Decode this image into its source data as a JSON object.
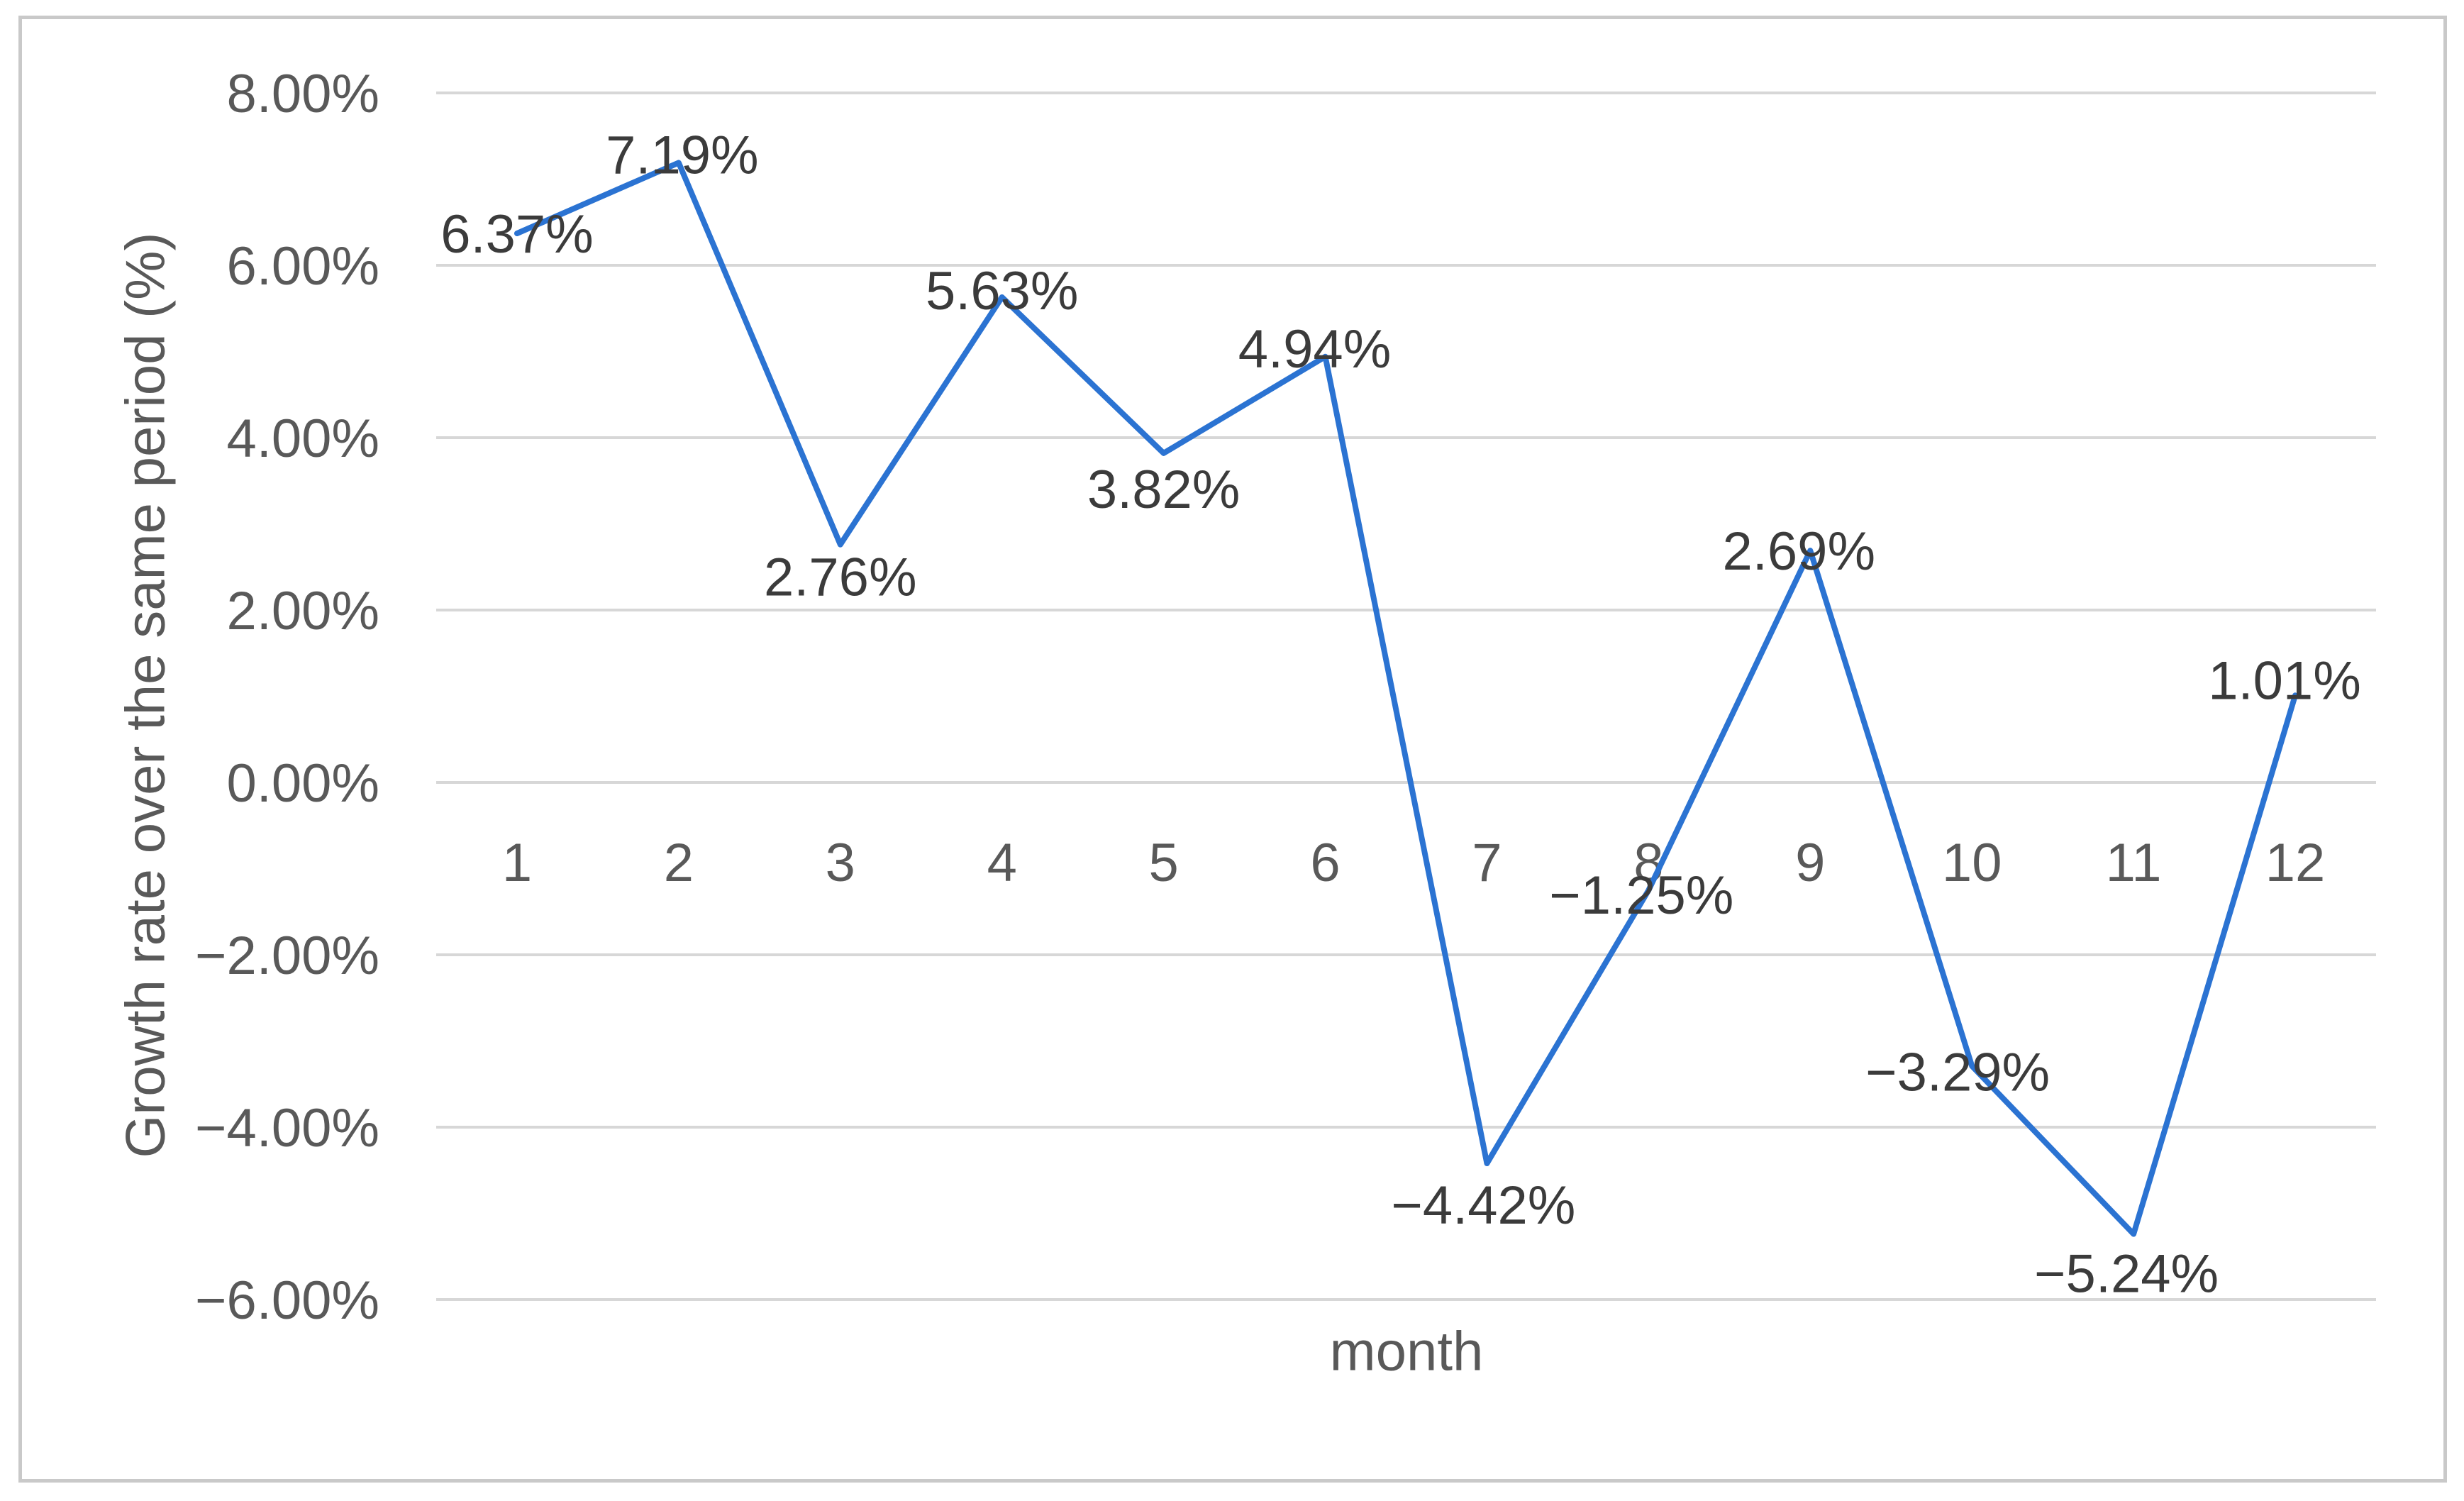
{
  "figure": {
    "background": "#ffffff",
    "frame_border_color": "#c9c9c9"
  },
  "chart_data": {
    "type": "line",
    "title": "",
    "xlabel": "month",
    "ylabel": "Growth rate over the same period (%)",
    "categories": [
      "1",
      "2",
      "3",
      "4",
      "5",
      "6",
      "7",
      "8",
      "9",
      "10",
      "11",
      "12"
    ],
    "values": [
      6.37,
      7.19,
      2.76,
      5.63,
      3.82,
      4.94,
      -4.42,
      -1.25,
      2.69,
      -3.29,
      -5.24,
      1.01
    ],
    "data_labels": [
      "6.37%",
      "7.19%",
      "2.76%",
      "5.63%",
      "3.82%",
      "4.94%",
      "−4.42%",
      "−1.25%",
      "2.69%",
      "−3.29%",
      "−5.24%",
      "1.01%"
    ],
    "label_positions": [
      "center",
      "center",
      "below",
      "center",
      "below",
      "center",
      "below",
      "center",
      "center",
      "center",
      "below",
      "center"
    ],
    "y_ticks": [
      "8.00%",
      "6.00%",
      "4.00%",
      "2.00%",
      "0.00%",
      "−2.00%",
      "−4.00%",
      "−6.00%"
    ],
    "y_tick_values": [
      8,
      6,
      4,
      2,
      0,
      -2,
      -4,
      -6
    ],
    "ylim": [
      -6,
      8
    ],
    "grid": true,
    "legend": "none",
    "series_name": "growth rate",
    "line_color": "#2b73d2",
    "gridline_color": "#d7d7d7",
    "axis_text_color": "#595959",
    "label_text_color": "#3b3b3b"
  }
}
